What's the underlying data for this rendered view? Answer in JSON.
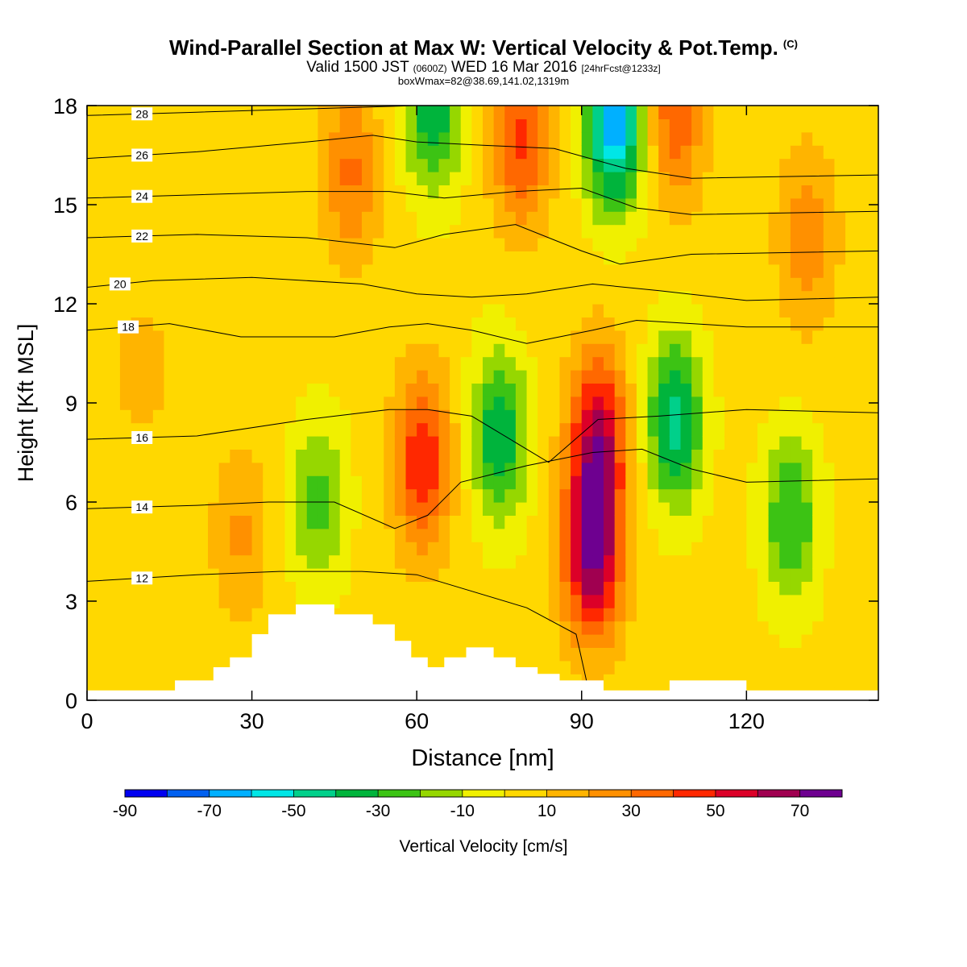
{
  "title": {
    "main": "Wind-Parallel Section at Max W: Vertical Velocity & Pot.Temp.",
    "copyright": "(C)",
    "line2_a": "Valid 1500 JST",
    "line2_b": "(0600Z)",
    "line2_c": "WED 16 Mar 2016",
    "line2_d": "[24hrFcst@1233z]",
    "line3": "boxWmax=82@38.69,141.02,1319m"
  },
  "chart_data": {
    "type": "heatmap",
    "xlabel": "Distance [nm]",
    "ylabel": "Height [Kft MSL]",
    "xlim": [
      0,
      144
    ],
    "ylim": [
      0,
      18
    ],
    "xticks": [
      "0",
      "30",
      "60",
      "90",
      "120"
    ],
    "xtick_values": [
      0,
      30,
      60,
      90,
      120
    ],
    "yticks": [
      "0",
      "3",
      "6",
      "9",
      "12",
      "15",
      "18"
    ],
    "ytick_values": [
      0,
      3,
      6,
      9,
      12,
      15,
      18
    ],
    "colorbar": {
      "label": "Vertical Velocity [cm/s]",
      "tick_labels": [
        "-90",
        "-70",
        "-50",
        "-30",
        "-10",
        "10",
        "30",
        "50",
        "70"
      ],
      "tick_values": [
        -90,
        -70,
        -50,
        -30,
        -10,
        10,
        30,
        50,
        70
      ],
      "bounds": [
        -90,
        -80,
        -70,
        -60,
        -50,
        -40,
        -30,
        -20,
        -10,
        0,
        10,
        20,
        30,
        40,
        50,
        60,
        70,
        80
      ],
      "colors": [
        "#0000f0",
        "#0060f0",
        "#00b0ff",
        "#00e6e6",
        "#00d08a",
        "#00b43c",
        "#3cc314",
        "#96d700",
        "#f0f000",
        "#ffd800",
        "#ffb400",
        "#ff9000",
        "#ff6800",
        "#ff2800",
        "#dc0028",
        "#a00050",
        "#6e0090"
      ]
    },
    "velocity_features": [
      {
        "x": 61,
        "z": 7.2,
        "w": 45
      },
      {
        "x": 92,
        "z": 4.5,
        "w": 68
      },
      {
        "x": 93,
        "z": 8.0,
        "w": 55
      },
      {
        "x": 48,
        "z": 16.0,
        "w": 28
      },
      {
        "x": 79,
        "z": 17.0,
        "w": 38
      },
      {
        "x": 107,
        "z": 17.8,
        "w": 35
      },
      {
        "x": 131,
        "z": 14.0,
        "w": 24
      },
      {
        "x": 96,
        "z": 17.5,
        "w": -70
      },
      {
        "x": 63,
        "z": 18.0,
        "w": -42
      },
      {
        "x": 75,
        "z": 8.0,
        "w": -42
      },
      {
        "x": 107,
        "z": 8.5,
        "w": -48
      },
      {
        "x": 128,
        "z": 5.5,
        "w": -35
      },
      {
        "x": 42,
        "z": 6.0,
        "w": -28
      },
      {
        "x": 28,
        "z": 5.0,
        "w": 18
      },
      {
        "x": 10,
        "z": 10.0,
        "w": 10
      }
    ],
    "theta_contours": [
      {
        "label": "12",
        "x": [
          0,
          20,
          35,
          50,
          60,
          80,
          89,
          91,
          95,
          100
        ],
        "y": [
          3.6,
          3.8,
          3.9,
          3.9,
          3.8,
          2.8,
          2.0,
          0.5,
          0.0,
          0.0
        ]
      },
      {
        "label": "14",
        "x": [
          0,
          20,
          33,
          45,
          56,
          62,
          68,
          80,
          92,
          101,
          110,
          120,
          144
        ],
        "y": [
          5.8,
          5.9,
          6.0,
          6.0,
          5.2,
          5.6,
          6.6,
          7.1,
          7.5,
          7.6,
          7.0,
          6.6,
          6.7
        ]
      },
      {
        "label": "16",
        "x": [
          0,
          20,
          40,
          55,
          62,
          70,
          84,
          93,
          104,
          120,
          144
        ],
        "y": [
          7.9,
          8.0,
          8.5,
          8.8,
          8.8,
          8.6,
          7.2,
          8.5,
          8.6,
          8.8,
          8.7
        ]
      },
      {
        "label": "18",
        "x": [
          0,
          15,
          28,
          45,
          55,
          62,
          70,
          80,
          92,
          100,
          120,
          144
        ],
        "y": [
          11.2,
          11.4,
          11.0,
          11.0,
          11.3,
          11.4,
          11.2,
          10.8,
          11.2,
          11.5,
          11.3,
          11.3
        ]
      },
      {
        "label": "20",
        "x": [
          0,
          12,
          30,
          50,
          60,
          70,
          80,
          92,
          104,
          120,
          144
        ],
        "y": [
          12.5,
          12.7,
          12.8,
          12.6,
          12.3,
          12.2,
          12.3,
          12.6,
          12.4,
          12.1,
          12.2
        ]
      },
      {
        "label": "22",
        "x": [
          0,
          20,
          40,
          56,
          65,
          78,
          90,
          97,
          110,
          144
        ],
        "y": [
          14.0,
          14.1,
          14.0,
          13.7,
          14.1,
          14.4,
          13.6,
          13.2,
          13.5,
          13.6
        ]
      },
      {
        "label": "24",
        "x": [
          0,
          20,
          40,
          55,
          65,
          78,
          90,
          100,
          110,
          144
        ],
        "y": [
          15.2,
          15.3,
          15.4,
          15.4,
          15.2,
          15.4,
          15.5,
          14.9,
          14.7,
          14.8
        ]
      },
      {
        "label": "26",
        "x": [
          0,
          20,
          40,
          52,
          60,
          72,
          85,
          98,
          110,
          144
        ],
        "y": [
          16.4,
          16.6,
          16.9,
          17.1,
          16.9,
          16.8,
          16.7,
          16.1,
          15.8,
          15.9
        ]
      },
      {
        "label": "28",
        "x": [
          0,
          20,
          40,
          60,
          80,
          100,
          120,
          144
        ],
        "y": [
          17.7,
          17.8,
          17.9,
          18.0,
          18.0,
          18.0,
          18.0,
          18.0
        ]
      }
    ],
    "terrain": {
      "x": [
        0,
        15,
        16,
        20,
        23,
        26,
        30,
        33,
        38,
        45,
        52,
        56,
        59,
        62,
        65,
        69,
        74,
        78,
        82,
        86,
        90,
        94,
        100,
        106,
        110,
        118,
        120,
        144
      ],
      "y": [
        0.3,
        0.3,
        0.6,
        0.6,
        1.0,
        1.3,
        2.0,
        2.6,
        2.9,
        2.6,
        2.3,
        1.8,
        1.3,
        1.0,
        1.3,
        1.6,
        1.3,
        1.0,
        0.8,
        0.6,
        0.6,
        0.3,
        0.3,
        0.6,
        0.6,
        0.6,
        0.3,
        0.3
      ]
    }
  }
}
